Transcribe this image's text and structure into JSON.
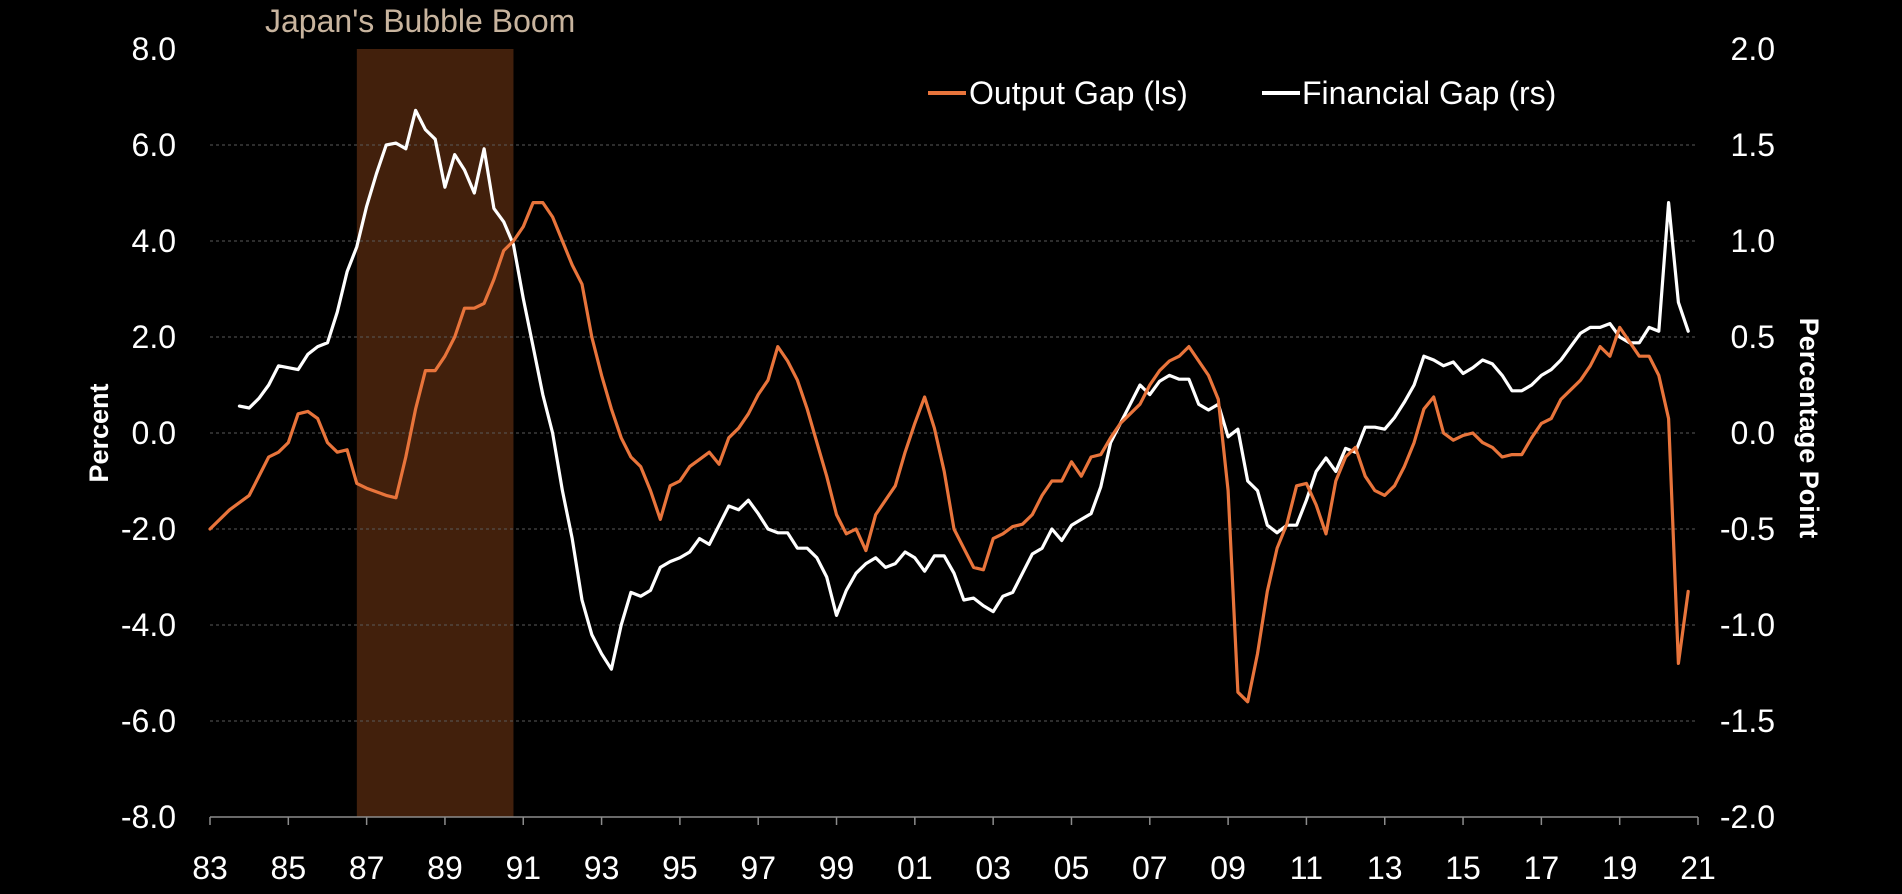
{
  "chart_data": {
    "type": "line",
    "annotation": "Japan's Bubble Boom",
    "shaded_period": [
      1986.75,
      1990.75
    ],
    "ylabel_left": "Percent",
    "ylabel_right": "Percentage Point",
    "ylim_left": [
      -8,
      8
    ],
    "ylim_right": [
      -2,
      2
    ],
    "xlim": [
      1983,
      2021
    ],
    "left_ticks": [
      "8.0",
      "6.0",
      "4.0",
      "2.0",
      "0.0",
      "-2.0",
      "-4.0",
      "-6.0",
      "-8.0"
    ],
    "right_ticks": [
      "2.0",
      "1.5",
      "1.0",
      "0.5",
      "0.0",
      "-0.5",
      "-1.0",
      "-1.5",
      "-2.0"
    ],
    "x_ticks": [
      "83",
      "85",
      "87",
      "89",
      "91",
      "93",
      "95",
      "97",
      "99",
      "01",
      "03",
      "05",
      "07",
      "09",
      "11",
      "13",
      "15",
      "17",
      "19",
      "21"
    ],
    "legend_position": "top-right",
    "series": [
      {
        "name": "Output Gap (ls)",
        "axis": "left",
        "color": "#e8743b",
        "points": [
          [
            1983.0,
            -2.0
          ],
          [
            1983.5,
            -1.6
          ],
          [
            1984.0,
            -1.3
          ],
          [
            1984.5,
            -0.5
          ],
          [
            1984.75,
            -0.4
          ],
          [
            1985.0,
            -0.2
          ],
          [
            1985.25,
            0.4
          ],
          [
            1985.5,
            0.45
          ],
          [
            1985.75,
            0.3
          ],
          [
            1986.0,
            -0.2
          ],
          [
            1986.25,
            -0.4
          ],
          [
            1986.5,
            -0.35
          ],
          [
            1986.75,
            -1.05
          ],
          [
            1987.0,
            -1.15
          ],
          [
            1987.5,
            -1.3
          ],
          [
            1987.75,
            -1.35
          ],
          [
            1988.0,
            -0.5
          ],
          [
            1988.25,
            0.5
          ],
          [
            1988.5,
            1.3
          ],
          [
            1988.75,
            1.3
          ],
          [
            1989.0,
            1.6
          ],
          [
            1989.25,
            2.0
          ],
          [
            1989.5,
            2.6
          ],
          [
            1989.75,
            2.6
          ],
          [
            1990.0,
            2.7
          ],
          [
            1990.25,
            3.2
          ],
          [
            1990.5,
            3.8
          ],
          [
            1990.75,
            4.0
          ],
          [
            1991.0,
            4.3
          ],
          [
            1991.25,
            4.8
          ],
          [
            1991.5,
            4.8
          ],
          [
            1991.75,
            4.5
          ],
          [
            1992.0,
            4.0
          ],
          [
            1992.25,
            3.5
          ],
          [
            1992.5,
            3.1
          ],
          [
            1992.75,
            2.0
          ],
          [
            1993.0,
            1.2
          ],
          [
            1993.25,
            0.5
          ],
          [
            1993.5,
            -0.1
          ],
          [
            1993.75,
            -0.5
          ],
          [
            1994.0,
            -0.7
          ],
          [
            1994.25,
            -1.2
          ],
          [
            1994.5,
            -1.8
          ],
          [
            1994.75,
            -1.1
          ],
          [
            1995.0,
            -1.0
          ],
          [
            1995.25,
            -0.7
          ],
          [
            1995.5,
            -0.55
          ],
          [
            1995.75,
            -0.4
          ],
          [
            1996.0,
            -0.65
          ],
          [
            1996.25,
            -0.1
          ],
          [
            1996.5,
            0.1
          ],
          [
            1996.75,
            0.4
          ],
          [
            1997.0,
            0.8
          ],
          [
            1997.25,
            1.1
          ],
          [
            1997.5,
            1.8
          ],
          [
            1997.75,
            1.5
          ],
          [
            1998.0,
            1.1
          ],
          [
            1998.25,
            0.5
          ],
          [
            1998.5,
            -0.2
          ],
          [
            1998.75,
            -0.9
          ],
          [
            1999.0,
            -1.7
          ],
          [
            1999.25,
            -2.1
          ],
          [
            1999.5,
            -2.0
          ],
          [
            1999.75,
            -2.45
          ],
          [
            2000.0,
            -1.7
          ],
          [
            2000.25,
            -1.4
          ],
          [
            2000.5,
            -1.1
          ],
          [
            2000.75,
            -0.4
          ],
          [
            2001.0,
            0.2
          ],
          [
            2001.25,
            0.75
          ],
          [
            2001.5,
            0.1
          ],
          [
            2001.75,
            -0.8
          ],
          [
            2002.0,
            -2.0
          ],
          [
            2002.25,
            -2.4
          ],
          [
            2002.5,
            -2.8
          ],
          [
            2002.75,
            -2.85
          ],
          [
            2003.0,
            -2.2
          ],
          [
            2003.25,
            -2.1
          ],
          [
            2003.5,
            -1.95
          ],
          [
            2003.75,
            -1.9
          ],
          [
            2004.0,
            -1.7
          ],
          [
            2004.25,
            -1.3
          ],
          [
            2004.5,
            -1.0
          ],
          [
            2004.75,
            -1.0
          ],
          [
            2005.0,
            -0.6
          ],
          [
            2005.25,
            -0.9
          ],
          [
            2005.5,
            -0.5
          ],
          [
            2005.75,
            -0.45
          ],
          [
            2006.0,
            -0.1
          ],
          [
            2006.25,
            0.2
          ],
          [
            2006.5,
            0.4
          ],
          [
            2006.75,
            0.6
          ],
          [
            2007.0,
            1.0
          ],
          [
            2007.25,
            1.3
          ],
          [
            2007.5,
            1.5
          ],
          [
            2007.75,
            1.6
          ],
          [
            2008.0,
            1.8
          ],
          [
            2008.25,
            1.5
          ],
          [
            2008.5,
            1.2
          ],
          [
            2008.75,
            0.7
          ],
          [
            2009.0,
            -1.2
          ],
          [
            2009.25,
            -5.4
          ],
          [
            2009.5,
            -5.6
          ],
          [
            2009.75,
            -4.6
          ],
          [
            2010.0,
            -3.3
          ],
          [
            2010.25,
            -2.4
          ],
          [
            2010.5,
            -1.9
          ],
          [
            2010.75,
            -1.1
          ],
          [
            2011.0,
            -1.05
          ],
          [
            2011.25,
            -1.5
          ],
          [
            2011.5,
            -2.1
          ],
          [
            2011.75,
            -1.0
          ],
          [
            2012.0,
            -0.5
          ],
          [
            2012.25,
            -0.3
          ],
          [
            2012.5,
            -0.9
          ],
          [
            2012.75,
            -1.2
          ],
          [
            2013.0,
            -1.3
          ],
          [
            2013.25,
            -1.1
          ],
          [
            2013.5,
            -0.7
          ],
          [
            2013.75,
            -0.2
          ],
          [
            2014.0,
            0.5
          ],
          [
            2014.25,
            0.75
          ],
          [
            2014.5,
            0.0
          ],
          [
            2014.75,
            -0.15
          ],
          [
            2015.0,
            -0.05
          ],
          [
            2015.25,
            0.0
          ],
          [
            2015.5,
            -0.2
          ],
          [
            2015.75,
            -0.3
          ],
          [
            2016.0,
            -0.5
          ],
          [
            2016.25,
            -0.45
          ],
          [
            2016.5,
            -0.45
          ],
          [
            2016.75,
            -0.1
          ],
          [
            2017.0,
            0.2
          ],
          [
            2017.25,
            0.3
          ],
          [
            2017.5,
            0.7
          ],
          [
            2017.75,
            0.9
          ],
          [
            2018.0,
            1.1
          ],
          [
            2018.25,
            1.4
          ],
          [
            2018.5,
            1.8
          ],
          [
            2018.75,
            1.6
          ],
          [
            2019.0,
            2.2
          ],
          [
            2019.25,
            1.9
          ],
          [
            2019.5,
            1.6
          ],
          [
            2019.75,
            1.6
          ],
          [
            2020.0,
            1.2
          ],
          [
            2020.25,
            0.3
          ],
          [
            2020.5,
            -4.8
          ],
          [
            2020.75,
            -3.3
          ]
        ]
      },
      {
        "name": "Financial Gap (rs)",
        "axis": "right",
        "color": "#ffffff",
        "points": [
          [
            1983.75,
            0.14
          ],
          [
            1984.0,
            0.13
          ],
          [
            1984.25,
            0.18
          ],
          [
            1984.5,
            0.25
          ],
          [
            1984.75,
            0.35
          ],
          [
            1985.0,
            0.34
          ],
          [
            1985.25,
            0.33
          ],
          [
            1985.5,
            0.41
          ],
          [
            1985.75,
            0.45
          ],
          [
            1986.0,
            0.47
          ],
          [
            1986.25,
            0.63
          ],
          [
            1986.5,
            0.84
          ],
          [
            1986.75,
            0.97
          ],
          [
            1987.0,
            1.18
          ],
          [
            1987.25,
            1.35
          ],
          [
            1987.5,
            1.5
          ],
          [
            1987.75,
            1.51
          ],
          [
            1988.0,
            1.48
          ],
          [
            1988.25,
            1.68
          ],
          [
            1988.5,
            1.58
          ],
          [
            1988.75,
            1.53
          ],
          [
            1989.0,
            1.28
          ],
          [
            1989.25,
            1.45
          ],
          [
            1989.5,
            1.37
          ],
          [
            1989.75,
            1.25
          ],
          [
            1990.0,
            1.48
          ],
          [
            1990.25,
            1.17
          ],
          [
            1990.5,
            1.1
          ],
          [
            1990.75,
            0.98
          ],
          [
            1991.0,
            0.7
          ],
          [
            1991.25,
            0.45
          ],
          [
            1991.5,
            0.2
          ],
          [
            1991.75,
            0.0
          ],
          [
            1992.0,
            -0.3
          ],
          [
            1992.25,
            -0.55
          ],
          [
            1992.5,
            -0.87
          ],
          [
            1992.75,
            -1.05
          ],
          [
            1993.0,
            -1.15
          ],
          [
            1993.25,
            -1.23
          ],
          [
            1993.5,
            -1.0
          ],
          [
            1993.75,
            -0.83
          ],
          [
            1994.0,
            -0.85
          ],
          [
            1994.25,
            -0.82
          ],
          [
            1994.5,
            -0.7
          ],
          [
            1994.75,
            -0.67
          ],
          [
            1995.0,
            -0.65
          ],
          [
            1995.25,
            -0.62
          ],
          [
            1995.5,
            -0.55
          ],
          [
            1995.75,
            -0.58
          ],
          [
            1996.0,
            -0.48
          ],
          [
            1996.25,
            -0.38
          ],
          [
            1996.5,
            -0.4
          ],
          [
            1996.75,
            -0.35
          ],
          [
            1997.0,
            -0.42
          ],
          [
            1997.25,
            -0.5
          ],
          [
            1997.5,
            -0.52
          ],
          [
            1997.75,
            -0.52
          ],
          [
            1998.0,
            -0.6
          ],
          [
            1998.25,
            -0.6
          ],
          [
            1998.5,
            -0.65
          ],
          [
            1998.75,
            -0.75
          ],
          [
            1999.0,
            -0.95
          ],
          [
            1999.25,
            -0.82
          ],
          [
            1999.5,
            -0.73
          ],
          [
            1999.75,
            -0.68
          ],
          [
            2000.0,
            -0.65
          ],
          [
            2000.25,
            -0.7
          ],
          [
            2000.5,
            -0.68
          ],
          [
            2000.75,
            -0.62
          ],
          [
            2001.0,
            -0.65
          ],
          [
            2001.25,
            -0.72
          ],
          [
            2001.5,
            -0.64
          ],
          [
            2001.75,
            -0.64
          ],
          [
            2002.0,
            -0.73
          ],
          [
            2002.25,
            -0.87
          ],
          [
            2002.5,
            -0.86
          ],
          [
            2002.75,
            -0.9
          ],
          [
            2003.0,
            -0.93
          ],
          [
            2003.25,
            -0.85
          ],
          [
            2003.5,
            -0.83
          ],
          [
            2003.75,
            -0.73
          ],
          [
            2004.0,
            -0.63
          ],
          [
            2004.25,
            -0.6
          ],
          [
            2004.5,
            -0.5
          ],
          [
            2004.75,
            -0.56
          ],
          [
            2005.0,
            -0.48
          ],
          [
            2005.25,
            -0.45
          ],
          [
            2005.5,
            -0.42
          ],
          [
            2005.75,
            -0.28
          ],
          [
            2006.0,
            -0.05
          ],
          [
            2006.25,
            0.05
          ],
          [
            2006.5,
            0.15
          ],
          [
            2006.75,
            0.25
          ],
          [
            2007.0,
            0.2
          ],
          [
            2007.25,
            0.27
          ],
          [
            2007.5,
            0.3
          ],
          [
            2007.75,
            0.28
          ],
          [
            2008.0,
            0.28
          ],
          [
            2008.25,
            0.15
          ],
          [
            2008.5,
            0.12
          ],
          [
            2008.75,
            0.15
          ],
          [
            2009.0,
            -0.02
          ],
          [
            2009.25,
            0.02
          ],
          [
            2009.5,
            -0.25
          ],
          [
            2009.75,
            -0.3
          ],
          [
            2010.0,
            -0.48
          ],
          [
            2010.25,
            -0.52
          ],
          [
            2010.5,
            -0.48
          ],
          [
            2010.75,
            -0.48
          ],
          [
            2011.0,
            -0.35
          ],
          [
            2011.25,
            -0.2
          ],
          [
            2011.5,
            -0.13
          ],
          [
            2011.75,
            -0.2
          ],
          [
            2012.0,
            -0.08
          ],
          [
            2012.25,
            -0.1
          ],
          [
            2012.5,
            0.03
          ],
          [
            2012.75,
            0.03
          ],
          [
            2013.0,
            0.02
          ],
          [
            2013.25,
            0.08
          ],
          [
            2013.5,
            0.16
          ],
          [
            2013.75,
            0.25
          ],
          [
            2014.0,
            0.4
          ],
          [
            2014.25,
            0.38
          ],
          [
            2014.5,
            0.35
          ],
          [
            2014.75,
            0.37
          ],
          [
            2015.0,
            0.31
          ],
          [
            2015.25,
            0.34
          ],
          [
            2015.5,
            0.38
          ],
          [
            2015.75,
            0.36
          ],
          [
            2016.0,
            0.3
          ],
          [
            2016.25,
            0.22
          ],
          [
            2016.5,
            0.22
          ],
          [
            2016.75,
            0.25
          ],
          [
            2017.0,
            0.3
          ],
          [
            2017.25,
            0.33
          ],
          [
            2017.5,
            0.38
          ],
          [
            2017.75,
            0.45
          ],
          [
            2018.0,
            0.52
          ],
          [
            2018.25,
            0.55
          ],
          [
            2018.5,
            0.55
          ],
          [
            2018.75,
            0.57
          ],
          [
            2019.0,
            0.5
          ],
          [
            2019.25,
            0.47
          ],
          [
            2019.5,
            0.47
          ],
          [
            2019.75,
            0.55
          ],
          [
            2020.0,
            0.53
          ],
          [
            2020.25,
            1.2
          ],
          [
            2020.5,
            0.68
          ],
          [
            2020.75,
            0.53
          ]
        ]
      }
    ]
  }
}
